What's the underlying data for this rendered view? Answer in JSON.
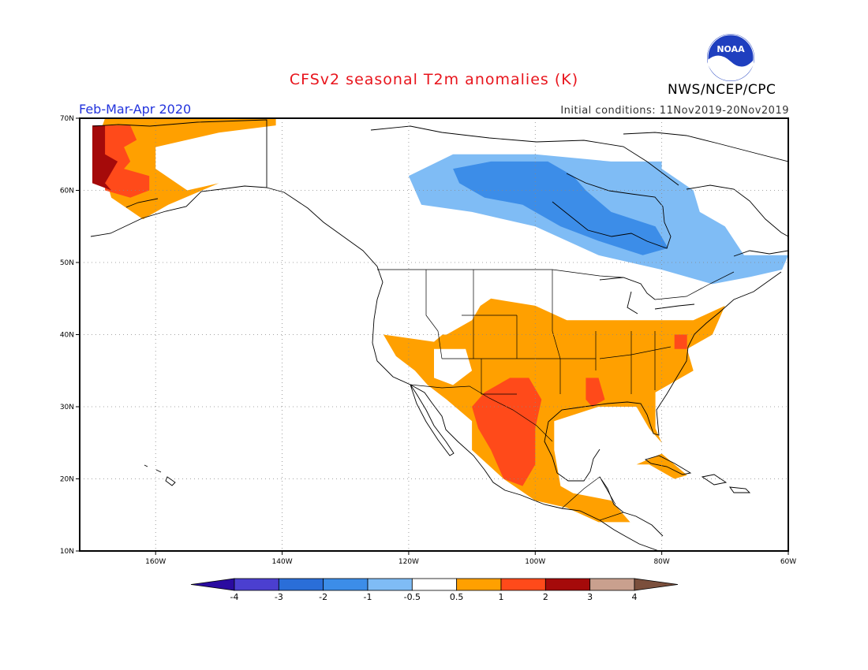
{
  "header": {
    "title": "CFSv2 seasonal T2m anomalies (K)",
    "period": "Feb-Mar-Apr 2020",
    "initial_conditions": "Initial conditions: 11Nov2019-20Nov2019",
    "agency": "NWS/NCEP/CPC",
    "logo_text": "NOAA"
  },
  "map": {
    "lon_range": [
      -172,
      -60
    ],
    "lat_range": [
      10,
      70
    ],
    "lon_ticks": [
      {
        "value": -160,
        "label": "160W"
      },
      {
        "value": -140,
        "label": "140W"
      },
      {
        "value": -120,
        "label": "120W"
      },
      {
        "value": -100,
        "label": "100W"
      },
      {
        "value": -80,
        "label": "80W"
      },
      {
        "value": -60,
        "label": "60W"
      }
    ],
    "lat_ticks": [
      {
        "value": 10,
        "label": "10N"
      },
      {
        "value": 20,
        "label": "20N"
      },
      {
        "value": 30,
        "label": "30N"
      },
      {
        "value": 40,
        "label": "40N"
      },
      {
        "value": 50,
        "label": "50N"
      },
      {
        "value": 60,
        "label": "60N"
      },
      {
        "value": 70,
        "label": "70N"
      }
    ],
    "gridlines": "dotted"
  },
  "colorbar": {
    "labels": [
      "-4",
      "-3",
      "-2",
      "-1",
      "-0.5",
      "0.5",
      "1",
      "2",
      "3",
      "4"
    ],
    "colors": [
      "#2a0ba0",
      "#4b3fd0",
      "#2a6ed8",
      "#3c8de8",
      "#7fbcf5",
      "#ffffff",
      "#ffa000",
      "#ff4a1a",
      "#a50a0a",
      "#c9a08e",
      "#7b4f3c"
    ]
  },
  "anomaly_regions": [
    {
      "name": "alaska-warm",
      "color": "#ffa000",
      "lonlat": [
        [
          -170,
          65
        ],
        [
          -168,
          70
        ],
        [
          -141,
          70
        ],
        [
          -141,
          69
        ],
        [
          -150,
          68
        ],
        [
          -160,
          66
        ],
        [
          -160,
          63
        ],
        [
          -155,
          60
        ],
        [
          -150,
          61
        ],
        [
          -158,
          58
        ],
        [
          -162,
          56
        ],
        [
          -167,
          59
        ],
        [
          -168,
          62
        ]
      ]
    },
    {
      "name": "alaska-hot",
      "color": "#ff4a1a",
      "lonlat": [
        [
          -169,
          69
        ],
        [
          -164,
          69
        ],
        [
          -163,
          67
        ],
        [
          -165,
          66
        ],
        [
          -164,
          64
        ],
        [
          -165,
          63
        ],
        [
          -161,
          62
        ],
        [
          -161,
          60
        ],
        [
          -164,
          59
        ],
        [
          -168,
          60
        ],
        [
          -168,
          62
        ],
        [
          -169,
          64
        ]
      ]
    },
    {
      "name": "alaska-veryhot",
      "color": "#a50a0a",
      "lonlat": [
        [
          -170,
          69
        ],
        [
          -168,
          69
        ],
        [
          -168,
          65
        ],
        [
          -166,
          64
        ],
        [
          -168,
          61
        ],
        [
          -167,
          60
        ],
        [
          -170,
          61
        ]
      ]
    },
    {
      "name": "canada-cool",
      "color": "#7fbcf5",
      "lonlat": [
        [
          -120,
          62
        ],
        [
          -113,
          65
        ],
        [
          -100,
          65
        ],
        [
          -88,
          64
        ],
        [
          -80,
          64
        ],
        [
          -80,
          63
        ],
        [
          -75,
          60
        ],
        [
          -74,
          57
        ],
        [
          -70,
          55
        ],
        [
          -67,
          51
        ],
        [
          -60,
          51
        ],
        [
          -61,
          49
        ],
        [
          -66,
          48
        ],
        [
          -72,
          47
        ],
        [
          -80,
          49
        ],
        [
          -90,
          51
        ],
        [
          -100,
          55
        ],
        [
          -110,
          57
        ],
        [
          -118,
          58
        ]
      ]
    },
    {
      "name": "canada-cold",
      "color": "#3c8de8",
      "lonlat": [
        [
          -113,
          63
        ],
        [
          -107,
          64
        ],
        [
          -98,
          64
        ],
        [
          -94,
          62
        ],
        [
          -92,
          60
        ],
        [
          -88,
          57
        ],
        [
          -81,
          55
        ],
        [
          -79,
          52
        ],
        [
          -83,
          51
        ],
        [
          -90,
          53
        ],
        [
          -96,
          55
        ],
        [
          -102,
          58
        ],
        [
          -108,
          59
        ],
        [
          -112,
          61
        ]
      ]
    },
    {
      "name": "us-warm",
      "color": "#ffa000",
      "lonlat": [
        [
          -124,
          40
        ],
        [
          -116,
          39
        ],
        [
          -112,
          42
        ],
        [
          -107,
          45
        ],
        [
          -100,
          44
        ],
        [
          -95,
          42
        ],
        [
          -82,
          42
        ],
        [
          -75,
          42
        ],
        [
          -70,
          44
        ],
        [
          -72,
          40
        ],
        [
          -76,
          38
        ],
        [
          -75,
          35
        ],
        [
          -81,
          32
        ],
        [
          -81,
          27
        ],
        [
          -80,
          25
        ],
        [
          -82,
          27
        ],
        [
          -84,
          30
        ],
        [
          -90,
          30
        ],
        [
          -97,
          28
        ],
        [
          -97,
          24
        ],
        [
          -96,
          19
        ],
        [
          -94,
          18
        ],
        [
          -88,
          17
        ],
        [
          -85,
          14
        ],
        [
          -90,
          14
        ],
        [
          -95,
          16
        ],
        [
          -100,
          17
        ],
        [
          -105,
          20
        ],
        [
          -110,
          24
        ],
        [
          -110,
          28
        ],
        [
          -114,
          31
        ],
        [
          -117,
          33
        ],
        [
          -119,
          35
        ],
        [
          -122,
          37
        ]
      ]
    },
    {
      "name": "mexico-hot",
      "color": "#ff4a1a",
      "lonlat": [
        [
          -108,
          32
        ],
        [
          -104,
          34
        ],
        [
          -101,
          34
        ],
        [
          -99,
          31
        ],
        [
          -100,
          27
        ],
        [
          -100,
          22
        ],
        [
          -102,
          19
        ],
        [
          -105,
          20
        ],
        [
          -107,
          24
        ],
        [
          -109,
          27
        ],
        [
          -110,
          30
        ]
      ]
    },
    {
      "name": "mississippi-hot",
      "color": "#ff4a1a",
      "lonlat": [
        [
          -92,
          34
        ],
        [
          -90,
          34
        ],
        [
          -89,
          31
        ],
        [
          -91,
          30
        ],
        [
          -92,
          31
        ]
      ]
    },
    {
      "name": "midatlantic-hot",
      "color": "#ff4a1a",
      "lonlat": [
        [
          -78,
          40
        ],
        [
          -76,
          40
        ],
        [
          -76,
          38
        ],
        [
          -78,
          38
        ]
      ]
    },
    {
      "name": "us-northwest-neutral",
      "color": "#ffffff",
      "lonlat": [
        [
          -124,
          49
        ],
        [
          -118,
          49
        ],
        [
          -112,
          49
        ],
        [
          -108,
          45
        ],
        [
          -110,
          42
        ],
        [
          -114,
          40
        ],
        [
          -118,
          40
        ],
        [
          -124,
          42
        ]
      ]
    },
    {
      "name": "great-basin-neutral",
      "color": "#ffffff",
      "lonlat": [
        [
          -116,
          38
        ],
        [
          -111,
          38
        ],
        [
          -110,
          35
        ],
        [
          -113,
          33
        ],
        [
          -116,
          34
        ]
      ]
    },
    {
      "name": "cuba-warm",
      "color": "#ffa000",
      "lonlat": [
        [
          -84,
          22
        ],
        [
          -80,
          23.5
        ],
        [
          -76,
          20.5
        ],
        [
          -78,
          20
        ],
        [
          -82,
          22
        ]
      ]
    }
  ]
}
